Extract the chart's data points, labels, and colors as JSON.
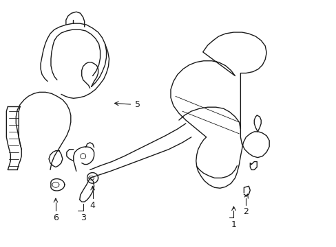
{
  "bg_color": "#ffffff",
  "line_color": "#1a1a1a",
  "lw": 1.0,
  "tlw": 0.6,
  "figsize": [
    4.89,
    3.6
  ],
  "dpi": 100,
  "xlim": [
    0,
    489
  ],
  "ylim": [
    0,
    360
  ]
}
